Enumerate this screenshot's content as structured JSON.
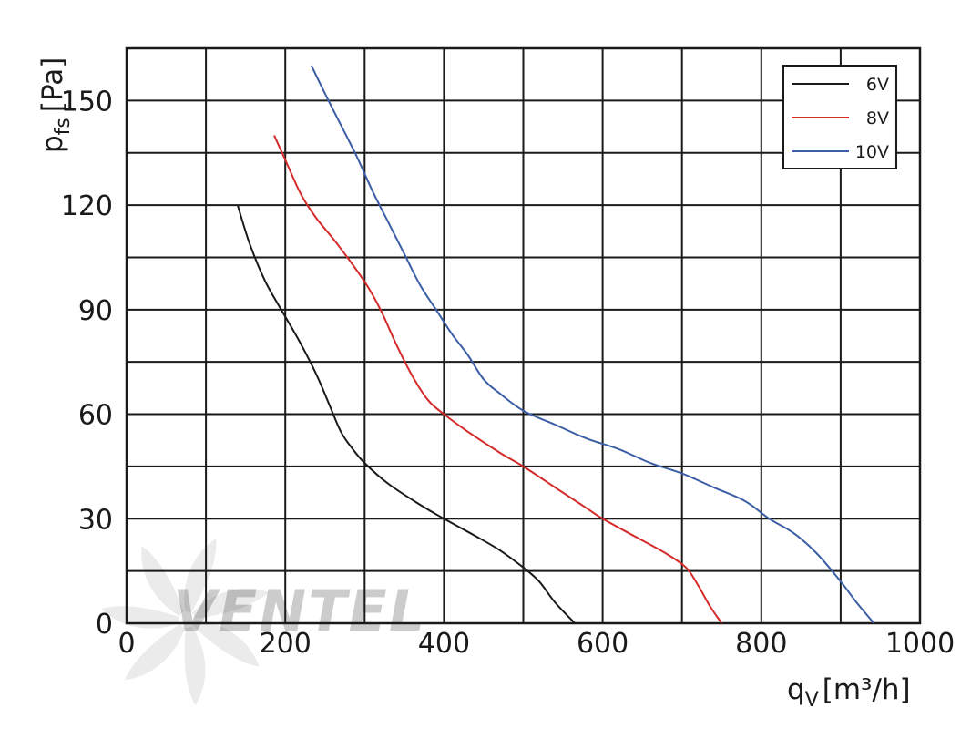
{
  "chart_data": {
    "type": "line",
    "xlabel": "q",
    "xlabel_sub": "V",
    "xlabel_unit": "[m³/h]",
    "ylabel": "p",
    "ylabel_sub": "fs",
    "ylabel_unit": "[Pa]",
    "xlim": [
      0,
      1000
    ],
    "ylim": [
      0,
      165
    ],
    "x_ticks": [
      0,
      200,
      400,
      600,
      800,
      1000
    ],
    "x_tick_labels": [
      "0",
      "200",
      "400",
      "600",
      "800",
      "1000"
    ],
    "x_grid": [
      0,
      100,
      200,
      300,
      400,
      500,
      600,
      700,
      800,
      900,
      1000
    ],
    "y_ticks": [
      0,
      30,
      60,
      90,
      120,
      150
    ],
    "y_tick_labels": [
      "0",
      "30",
      "60",
      "90",
      "120",
      "150"
    ],
    "y_grid": [
      0,
      15,
      30,
      45,
      60,
      75,
      90,
      105,
      120,
      135,
      150,
      165
    ],
    "grid": true,
    "legend_position": "top-right",
    "watermark": "VENTEL",
    "series": [
      {
        "name": "6V",
        "color": "#1a1a1a",
        "points": [
          [
            140,
            120
          ],
          [
            155,
            109
          ],
          [
            175,
            98
          ],
          [
            200,
            88
          ],
          [
            220,
            80
          ],
          [
            240,
            71
          ],
          [
            255,
            63
          ],
          [
            270,
            55
          ],
          [
            285,
            50
          ],
          [
            300,
            46
          ],
          [
            330,
            40
          ],
          [
            370,
            34
          ],
          [
            400,
            30
          ],
          [
            440,
            25
          ],
          [
            470,
            21
          ],
          [
            500,
            16
          ],
          [
            520,
            12
          ],
          [
            540,
            6
          ],
          [
            565,
            0
          ]
        ]
      },
      {
        "name": "8V",
        "color": "#d42a2a",
        "points": [
          [
            186,
            140
          ],
          [
            200,
            133
          ],
          [
            220,
            123
          ],
          [
            240,
            116
          ],
          [
            265,
            109
          ],
          [
            300,
            98
          ],
          [
            320,
            90
          ],
          [
            340,
            80
          ],
          [
            360,
            71
          ],
          [
            380,
            64
          ],
          [
            400,
            60
          ],
          [
            430,
            55
          ],
          [
            470,
            49
          ],
          [
            500,
            45
          ],
          [
            540,
            39
          ],
          [
            580,
            33
          ],
          [
            600,
            30
          ],
          [
            640,
            25
          ],
          [
            680,
            20
          ],
          [
            705,
            16
          ],
          [
            720,
            11
          ],
          [
            735,
            5
          ],
          [
            750,
            0
          ]
        ]
      },
      {
        "name": "10V",
        "color": "#3c5ea6",
        "points": [
          [
            233,
            160
          ],
          [
            250,
            152
          ],
          [
            270,
            143
          ],
          [
            290,
            134
          ],
          [
            310,
            124
          ],
          [
            330,
            115
          ],
          [
            350,
            106
          ],
          [
            370,
            97
          ],
          [
            390,
            90
          ],
          [
            410,
            83
          ],
          [
            430,
            77
          ],
          [
            450,
            70
          ],
          [
            470,
            66
          ],
          [
            500,
            61
          ],
          [
            540,
            57
          ],
          [
            580,
            53
          ],
          [
            620,
            50
          ],
          [
            660,
            46
          ],
          [
            700,
            43
          ],
          [
            740,
            39
          ],
          [
            780,
            35
          ],
          [
            810,
            30
          ],
          [
            840,
            26
          ],
          [
            870,
            20
          ],
          [
            900,
            12
          ],
          [
            920,
            6
          ],
          [
            942,
            0
          ]
        ]
      }
    ]
  }
}
